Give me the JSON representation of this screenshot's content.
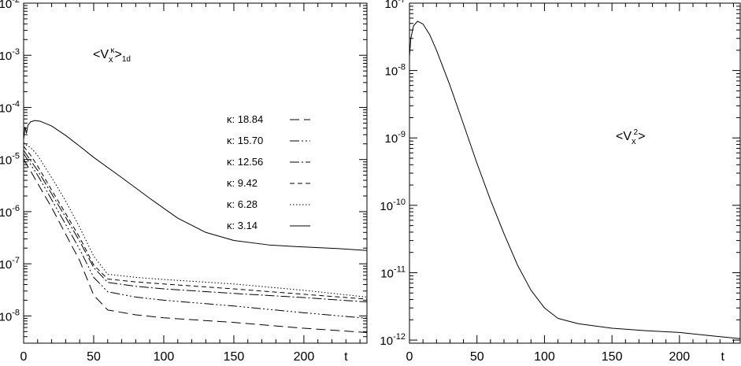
{
  "chart_data": [
    {
      "type": "line",
      "title": "",
      "xlabel": "t",
      "ylabel": "",
      "xlim": [
        0,
        245
      ],
      "ylim": [
        3e-09,
        0.01
      ],
      "yscale": "log",
      "grid": false,
      "legend_position": "right",
      "annotation": {
        "open": "<V",
        "sub": "x",
        "sup": "κ",
        "close": ">",
        "subscript2": "1d"
      },
      "x_ticks": [
        "0",
        "50",
        "100",
        "150",
        "200"
      ],
      "y_ticks": [
        {
          "base": "10",
          "exp": "-2",
          "value": 0.01
        },
        {
          "base": "10",
          "exp": "-3",
          "value": 0.001
        },
        {
          "base": "10",
          "exp": "-4",
          "value": 0.0001
        },
        {
          "base": "10",
          "exp": "-5",
          "value": 1e-05
        },
        {
          "base": "10",
          "exp": "-6",
          "value": 1e-06
        },
        {
          "base": "10",
          "exp": "-7",
          "value": 1e-07
        },
        {
          "base": "10",
          "exp": "-8",
          "value": 1e-08
        }
      ],
      "series": [
        {
          "name": "κ: 18.84",
          "dash": "12,6",
          "points": [
            [
              0,
              1e-05
            ],
            [
              5,
              6e-06
            ],
            [
              10,
              3.5e-06
            ],
            [
              20,
              1.2e-06
            ],
            [
              30,
              3.7e-07
            ],
            [
              40,
              1.15e-07
            ],
            [
              50,
              2.5e-08
            ],
            [
              60,
              1.3e-08
            ],
            [
              80,
              1.05e-08
            ],
            [
              100,
              9.2e-09
            ],
            [
              150,
              7.5e-09
            ],
            [
              200,
              5.8e-09
            ],
            [
              245,
              4.8e-09
            ]
          ]
        },
        {
          "name": "κ: 15.70",
          "dash": "12,3,2,3,2,3,2,3",
          "points": [
            [
              0,
              1.3e-05
            ],
            [
              5,
              8e-06
            ],
            [
              10,
              5e-06
            ],
            [
              20,
              1.7e-06
            ],
            [
              30,
              5.7e-07
            ],
            [
              40,
              1.9e-07
            ],
            [
              50,
              5.5e-08
            ],
            [
              60,
              2.9e-08
            ],
            [
              80,
              2.3e-08
            ],
            [
              100,
              2e-08
            ],
            [
              150,
              1.55e-08
            ],
            [
              200,
              1.15e-08
            ],
            [
              245,
              9e-09
            ]
          ]
        },
        {
          "name": "κ: 12.56",
          "dash": "12,3,2,3",
          "points": [
            [
              0,
              1.5e-05
            ],
            [
              5,
              9.5e-06
            ],
            [
              10,
              6.2e-06
            ],
            [
              20,
              2.2e-06
            ],
            [
              30,
              7.8e-07
            ],
            [
              40,
              2.7e-07
            ],
            [
              50,
              8.5e-08
            ],
            [
              60,
              4.4e-08
            ],
            [
              80,
              3.7e-08
            ],
            [
              100,
              3.3e-08
            ],
            [
              150,
              2.7e-08
            ],
            [
              200,
              2.25e-08
            ],
            [
              245,
              1.85e-08
            ]
          ]
        },
        {
          "name": "κ: 9.42",
          "dash": "6,4",
          "points": [
            [
              0,
              1.8e-05
            ],
            [
              5,
              1.2e-05
            ],
            [
              10,
              7.5e-06
            ],
            [
              20,
              2.6e-06
            ],
            [
              30,
              9.2e-07
            ],
            [
              40,
              3.2e-07
            ],
            [
              50,
              9.5e-08
            ],
            [
              60,
              5.1e-08
            ],
            [
              80,
              4.5e-08
            ],
            [
              100,
              4.1e-08
            ],
            [
              150,
              3.3e-08
            ],
            [
              200,
              2.6e-08
            ],
            [
              245,
              2.1e-08
            ]
          ]
        },
        {
          "name": "κ: 6.28",
          "dash": "1.5,2.5",
          "points": [
            [
              0,
              2.1e-05
            ],
            [
              3,
              1.8e-05
            ],
            [
              5,
              1.7e-05
            ],
            [
              10,
              1.2e-05
            ],
            [
              20,
              4.5e-06
            ],
            [
              30,
              1.6e-06
            ],
            [
              40,
              5e-07
            ],
            [
              50,
              1.4e-07
            ],
            [
              60,
              6.3e-08
            ],
            [
              80,
              5.5e-08
            ],
            [
              100,
              5e-08
            ],
            [
              150,
              4.1e-08
            ],
            [
              200,
              3.1e-08
            ],
            [
              245,
              2.3e-08
            ]
          ]
        },
        {
          "name": "κ: 3.14",
          "dash": "",
          "points": [
            [
              0,
              2.4e-05
            ],
            [
              1,
              4.2e-05
            ],
            [
              2,
              3.2e-05
            ],
            [
              3,
              4.5e-05
            ],
            [
              5,
              5.3e-05
            ],
            [
              8,
              5.6e-05
            ],
            [
              12,
              5.4e-05
            ],
            [
              20,
              4.4e-05
            ],
            [
              30,
              2.9e-05
            ],
            [
              40,
              1.8e-05
            ],
            [
              50,
              1.1e-05
            ],
            [
              70,
              4.5e-06
            ],
            [
              90,
              1.8e-06
            ],
            [
              110,
              7.5e-07
            ],
            [
              130,
              4e-07
            ],
            [
              150,
              2.8e-07
            ],
            [
              175,
              2.3e-07
            ],
            [
              200,
              2.1e-07
            ],
            [
              225,
              1.95e-07
            ],
            [
              245,
              1.8e-07
            ]
          ]
        }
      ]
    },
    {
      "type": "line",
      "title": "",
      "xlabel": "t",
      "ylabel": "",
      "xlim": [
        0,
        245
      ],
      "ylim": [
        9e-13,
        1e-07
      ],
      "yscale": "log",
      "grid": false,
      "annotation": {
        "open": "<V",
        "sub": "x",
        "sup": "2",
        "close": ">"
      },
      "x_ticks": [
        "0",
        "50",
        "100",
        "150",
        "200"
      ],
      "y_ticks": [
        {
          "base": "10",
          "exp": "-7",
          "value": 1e-07
        },
        {
          "base": "10",
          "exp": "-8",
          "value": 1e-08
        },
        {
          "base": "10",
          "exp": "-9",
          "value": 1e-09
        },
        {
          "base": "10",
          "exp": "-10",
          "value": 1e-10
        },
        {
          "base": "10",
          "exp": "-11",
          "value": 1e-11
        },
        {
          "base": "10",
          "exp": "-12",
          "value": 1e-12
        }
      ],
      "series": [
        {
          "name": "",
          "dash": "",
          "points": [
            [
              0,
              1.6e-08
            ],
            [
              1,
              3e-08
            ],
            [
              3,
              4.6e-08
            ],
            [
              6,
              5.4e-08
            ],
            [
              10,
              4.9e-08
            ],
            [
              15,
              3.4e-08
            ],
            [
              20,
              2e-08
            ],
            [
              30,
              6e-09
            ],
            [
              40,
              1.6e-09
            ],
            [
              50,
              4.2e-10
            ],
            [
              60,
              1.2e-10
            ],
            [
              70,
              3.8e-11
            ],
            [
              80,
              1.3e-11
            ],
            [
              90,
              5.5e-12
            ],
            [
              100,
              3e-12
            ],
            [
              110,
              2.1e-12
            ],
            [
              125,
              1.75e-12
            ],
            [
              150,
              1.5e-12
            ],
            [
              175,
              1.38e-12
            ],
            [
              200,
              1.3e-12
            ],
            [
              225,
              1.15e-12
            ],
            [
              245,
              1.05e-12
            ]
          ]
        }
      ]
    }
  ]
}
